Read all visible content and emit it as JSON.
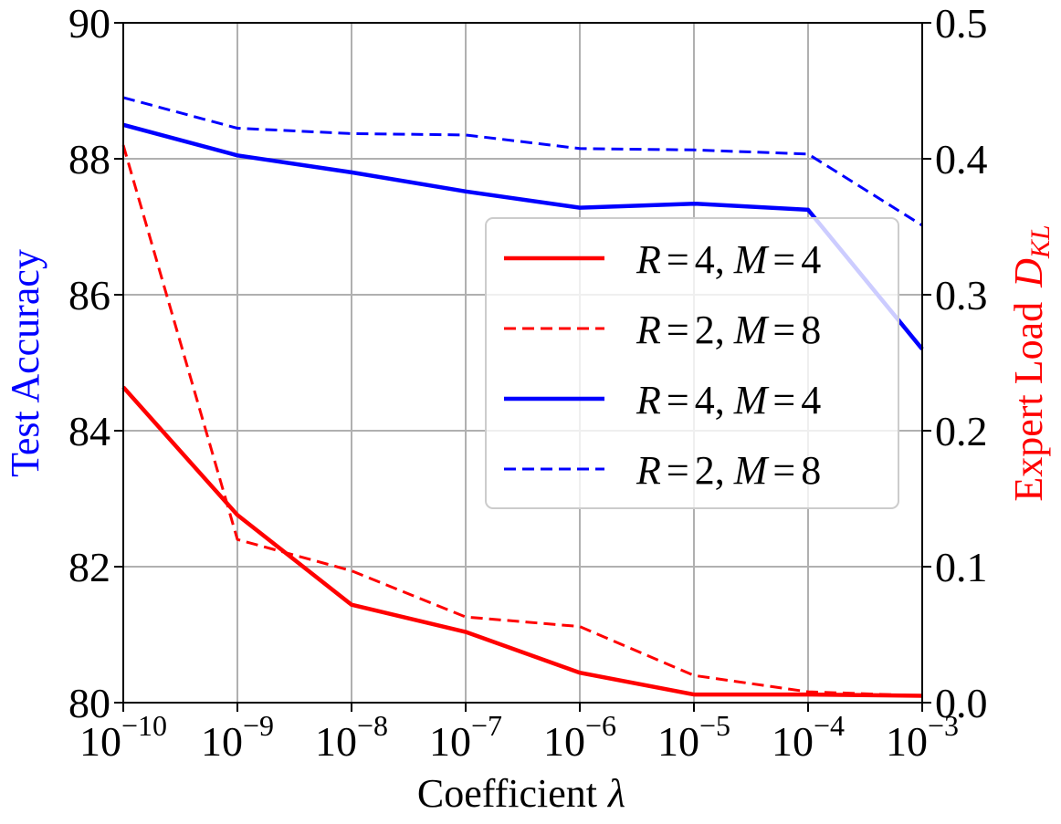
{
  "chart_data": {
    "type": "line",
    "x_scale": "log",
    "x": [
      1e-10,
      1e-09,
      1e-08,
      1e-07,
      1e-06,
      1e-05,
      0.0001,
      0.001
    ],
    "x_tick_labels": [
      {
        "base": "10",
        "exp": "−10"
      },
      {
        "base": "10",
        "exp": "−9"
      },
      {
        "base": "10",
        "exp": "−8"
      },
      {
        "base": "10",
        "exp": "−7"
      },
      {
        "base": "10",
        "exp": "−6"
      },
      {
        "base": "10",
        "exp": "−5"
      },
      {
        "base": "10",
        "exp": "−4"
      },
      {
        "base": "10",
        "exp": "−3"
      }
    ],
    "xlabel": "Coefficient",
    "xlabel_symbol": "λ",
    "ylabel_left": "Test Accuracy",
    "ylabel_right": "Expert Load",
    "ylabel_right_symbol": {
      "base": "D",
      "sub": "KL"
    },
    "ylim_left": [
      80,
      90
    ],
    "ylim_right": [
      0.0,
      0.5
    ],
    "y_left_ticks": [
      "80",
      "82",
      "84",
      "86",
      "88",
      "90"
    ],
    "y_right_ticks": [
      "0.0",
      "0.1",
      "0.2",
      "0.3",
      "0.4",
      "0.5"
    ],
    "grid": true,
    "legend_position": "center-right",
    "colors": {
      "left_axis": "#0000ff",
      "right_axis": "#ff0000"
    },
    "series": [
      {
        "name": "R=4, M=4",
        "legend_parts": [
          "R",
          "=",
          "4,",
          "M",
          "=",
          "4"
        ],
        "color": "#ff0000",
        "dash": "solid",
        "axis": "right",
        "values": [
          0.232,
          0.138,
          0.072,
          0.052,
          0.022,
          0.006,
          0.006,
          0.005
        ]
      },
      {
        "name": "R=2, M=8",
        "legend_parts": [
          "R",
          "=",
          "2,",
          "M",
          "=",
          "8"
        ],
        "color": "#ff0000",
        "dash": "dashed",
        "axis": "right",
        "values": [
          0.41,
          0.12,
          0.097,
          0.063,
          0.056,
          0.02,
          0.008,
          0.005
        ]
      },
      {
        "name": "R=4, M=4",
        "legend_parts": [
          "R",
          "=",
          "4,",
          "M",
          "=",
          "4"
        ],
        "color": "#0000ff",
        "dash": "solid",
        "axis": "left",
        "values": [
          88.5,
          88.05,
          87.8,
          87.52,
          87.28,
          87.34,
          87.25,
          85.2
        ]
      },
      {
        "name": "R=2, M=8",
        "legend_parts": [
          "R",
          "=",
          "2,",
          "M",
          "=",
          "8"
        ],
        "color": "#0000ff",
        "dash": "dashed",
        "axis": "left",
        "values": [
          88.9,
          88.45,
          88.37,
          88.35,
          88.15,
          88.13,
          88.07,
          87.02
        ]
      }
    ]
  }
}
